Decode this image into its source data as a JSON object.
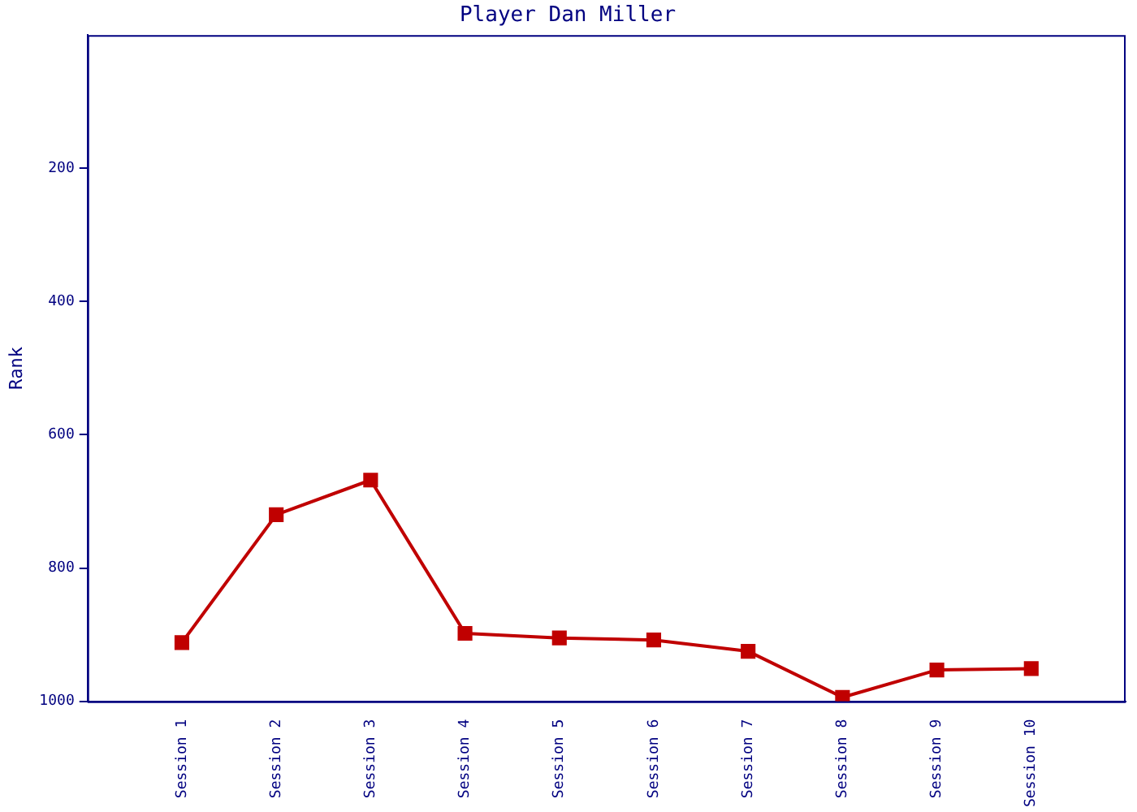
{
  "chart_data": {
    "type": "line",
    "title": "Player Dan Miller",
    "ylabel": "Rank",
    "categories": [
      "Session 1",
      "Session 2",
      "Session 3",
      "Session 4",
      "Session 5",
      "Session 6",
      "Session 7",
      "Session 8",
      "Session 9",
      "Session 10"
    ],
    "series": [
      {
        "color": "#c00000",
        "values": [
          912,
          720,
          668,
          898,
          905,
          908,
          925,
          994,
          953,
          951
        ]
      }
    ],
    "ylim": [
      1000,
      0
    ],
    "yticks": [
      200,
      400,
      600,
      800,
      1000
    ],
    "grid": false,
    "legend": false,
    "marker": "square",
    "line_style": "solid"
  }
}
